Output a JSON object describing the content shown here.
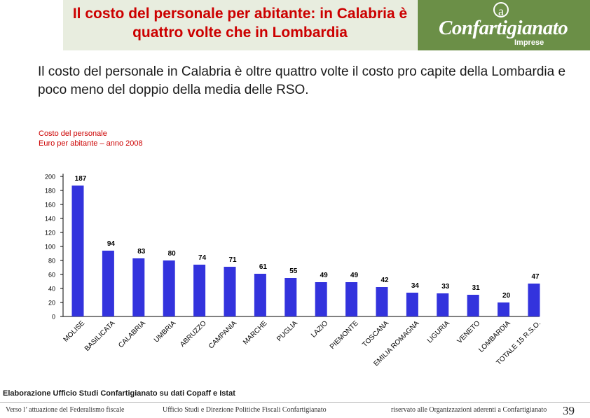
{
  "header": {
    "title": "Il costo del personale per abitante: in Calabria è quattro volte che in Lombardia",
    "logo_text": "Confartigianato",
    "logo_sub": "Imprese",
    "logo_mark": "a"
  },
  "subtitle": "Il costo del personale in Calabria è oltre quattro volte il costo pro capite della Lombardia e poco meno del doppio della media delle RSO.",
  "caption": {
    "line1": "Costo del personale",
    "line2": "Euro per abitante – anno 2008"
  },
  "chart_data": {
    "type": "bar",
    "title": "Costo del personale — Euro per abitante – anno 2008",
    "categories": [
      "MOLISE",
      "BASILICATA",
      "CALABRIA",
      "UMBRIA",
      "ABRUZZO",
      "CAMPANIA",
      "MARCHE",
      "PUGLIA",
      "LAZIO",
      "PIEMONTE",
      "TOSCANA",
      "EMILIA ROMAGNA",
      "LIGURIA",
      "VENETO",
      "LOMBARDIA",
      "TOTALE 15 R.S.O."
    ],
    "values": [
      187,
      94,
      83,
      80,
      74,
      71,
      61,
      55,
      49,
      49,
      42,
      34,
      33,
      31,
      20,
      47
    ],
    "yticks": [
      0,
      20,
      40,
      60,
      80,
      100,
      120,
      140,
      160,
      180,
      200
    ],
    "ylim": [
      0,
      200
    ],
    "bar_color": "#3333dd",
    "xlabel": "",
    "ylabel": ""
  },
  "source": "Elaborazione Ufficio Studi Confartigianato su dati Copaff e Istat",
  "footer": {
    "left": "Verso l’ attuazione del Federalismo fiscale",
    "center": "Ufficio Studi e Direzione Politiche Fiscali Confartigianato",
    "right": "riservato alle Organizzazioni aderenti a Confartigianato",
    "page": "39"
  }
}
